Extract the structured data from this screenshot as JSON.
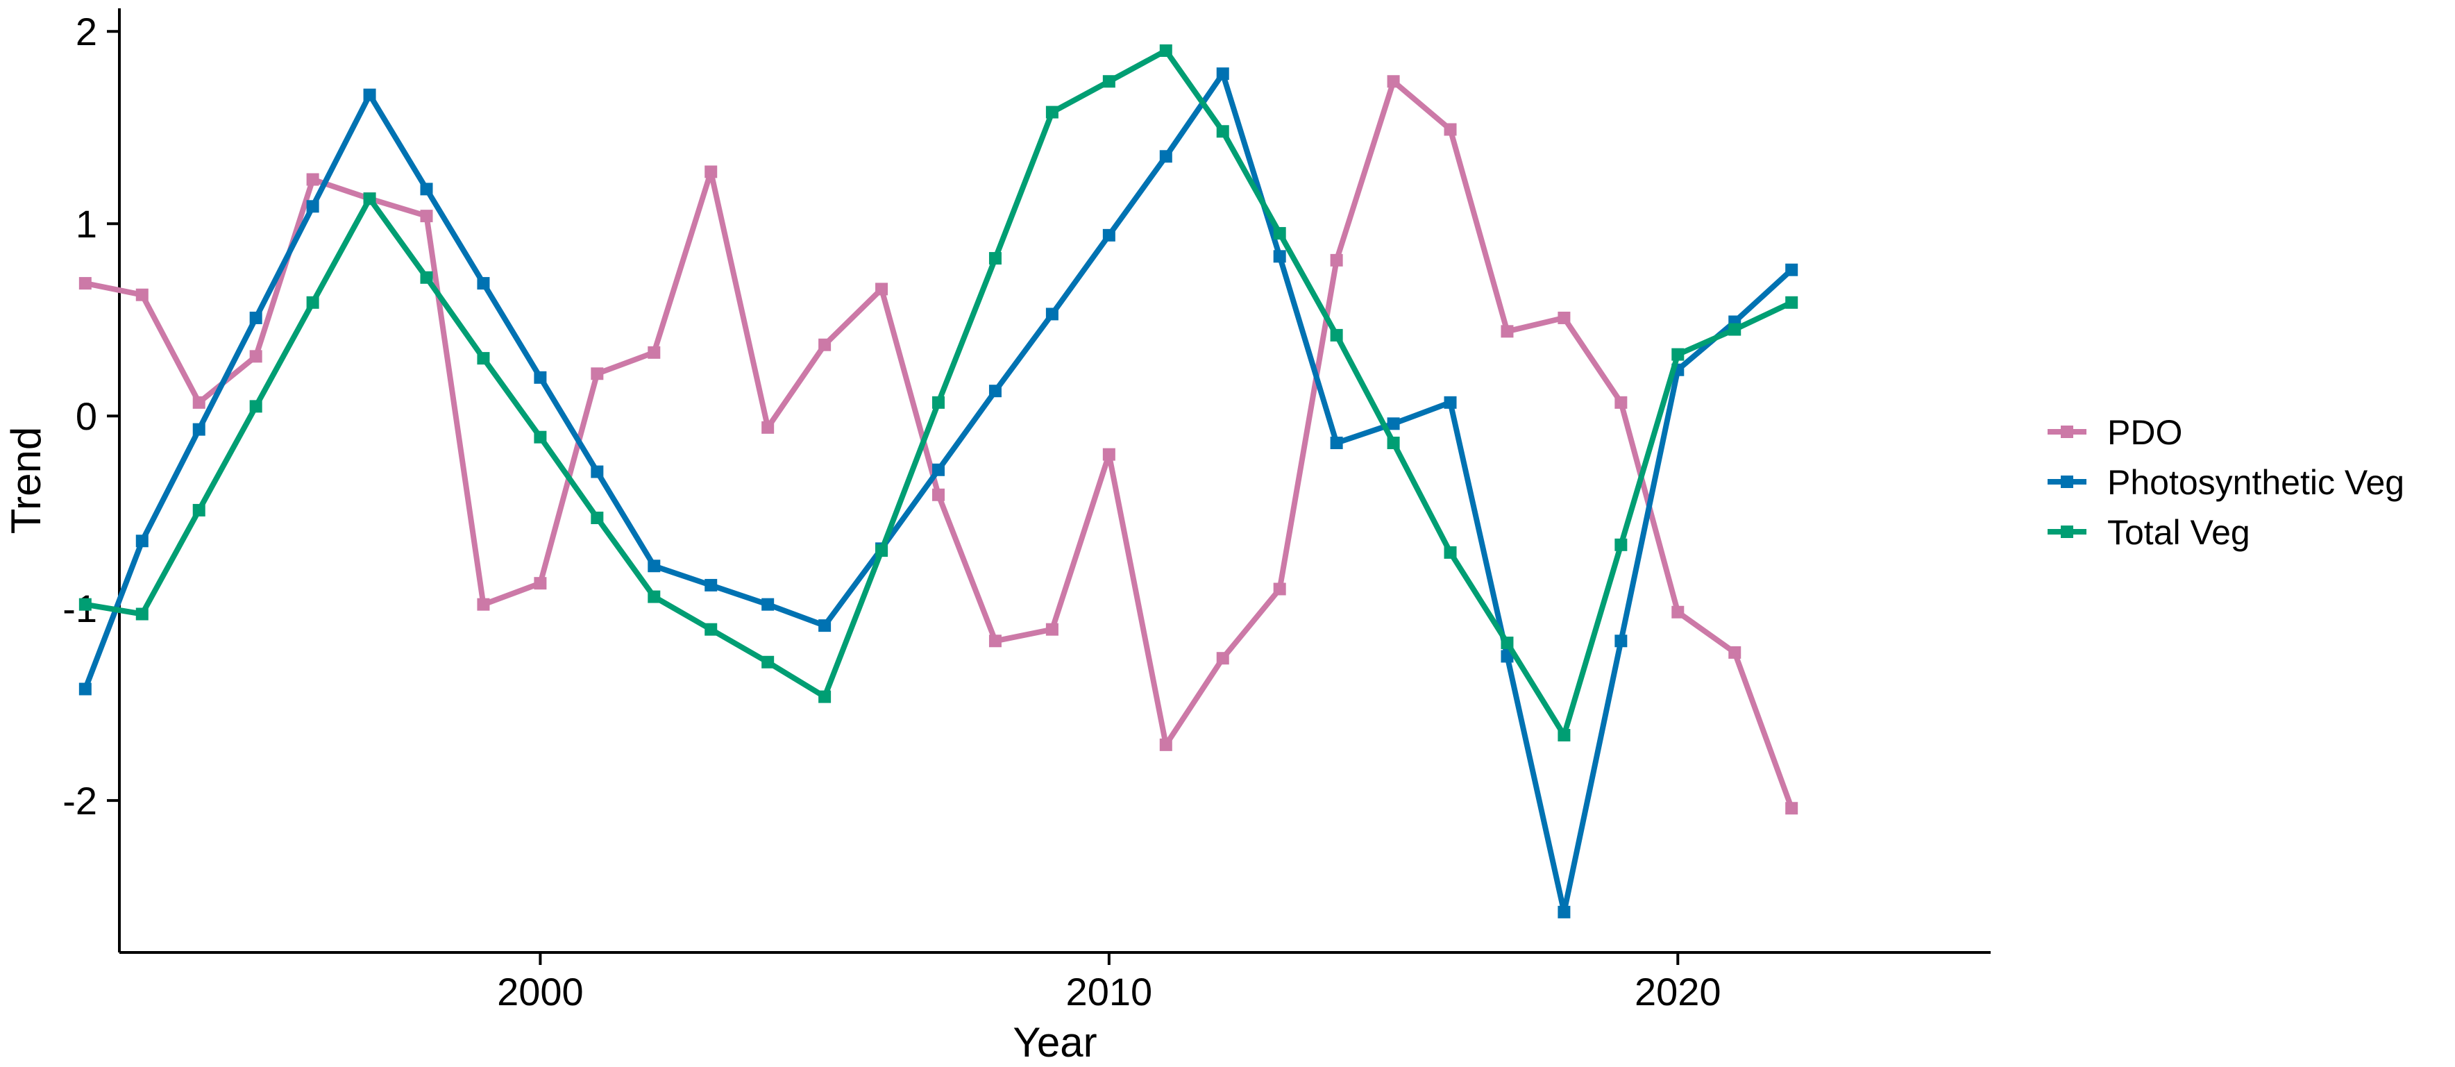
{
  "chart_data": {
    "type": "line",
    "xlabel": "Year",
    "ylabel": "Trend",
    "xlim": [
      1992.6,
      2025.5
    ],
    "ylim": [
      -2.79,
      2.12
    ],
    "x_ticks": [
      2000,
      2010,
      2020
    ],
    "y_ticks": [
      -2,
      -1,
      0,
      1,
      2
    ],
    "x_tick_labels": [
      "2000",
      "2010",
      "2020"
    ],
    "y_tick_labels": [
      "-2",
      "-1",
      "0",
      "1",
      "2"
    ],
    "grid": false,
    "legend_position": "right",
    "x": [
      1992,
      1993,
      1994,
      1995,
      1996,
      1997,
      1998,
      1999,
      2000,
      2001,
      2002,
      2003,
      2004,
      2005,
      2006,
      2007,
      2008,
      2009,
      2010,
      2011,
      2012,
      2013,
      2014,
      2015,
      2016,
      2017,
      2018,
      2019,
      2020,
      2021,
      2022
    ],
    "series": [
      {
        "name": "PDO",
        "color": "#CC79A7",
        "values": [
          0.69,
          0.63,
          0.07,
          0.31,
          1.23,
          1.13,
          1.04,
          -0.98,
          -0.87,
          0.22,
          0.33,
          1.27,
          -0.06,
          0.37,
          0.66,
          -0.41,
          -1.17,
          -1.11,
          -0.2,
          -1.71,
          -1.26,
          -0.9,
          0.81,
          1.74,
          1.49,
          0.44,
          0.51,
          0.07,
          -1.02,
          -1.23,
          -2.04
        ]
      },
      {
        "name": "Photosynthetic Veg",
        "color": "#0072B2",
        "values": [
          -1.42,
          -0.65,
          -0.07,
          0.51,
          1.09,
          1.67,
          1.18,
          0.69,
          0.2,
          -0.29,
          -0.78,
          -0.88,
          -0.98,
          -1.09,
          -0.69,
          -0.28,
          0.13,
          0.53,
          0.94,
          1.35,
          1.78,
          0.83,
          -0.14,
          -0.04,
          0.07,
          -1.25,
          -2.58,
          -1.17,
          0.24,
          0.49,
          0.76
        ]
      },
      {
        "name": "Total Veg",
        "color": "#009E73",
        "values": [
          -0.98,
          -1.03,
          -0.49,
          0.05,
          0.59,
          1.13,
          0.72,
          0.3,
          -0.11,
          -0.53,
          -0.94,
          -1.11,
          -1.28,
          -1.46,
          -0.7,
          0.07,
          0.82,
          1.58,
          1.74,
          1.9,
          1.48,
          0.95,
          0.42,
          -0.14,
          -0.71,
          -1.18,
          -1.66,
          -0.67,
          0.32,
          0.45,
          0.59
        ]
      }
    ]
  }
}
